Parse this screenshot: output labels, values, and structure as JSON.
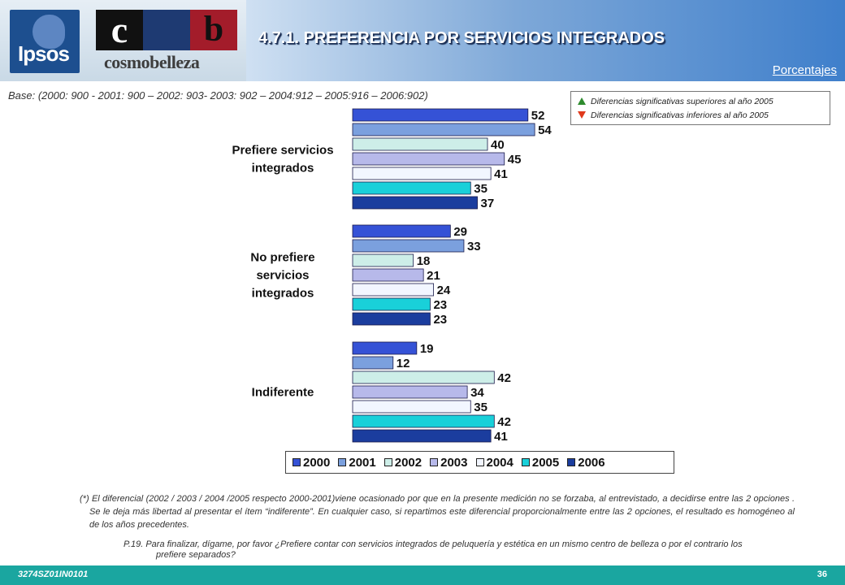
{
  "header": {
    "title": "4.7.1.  PREFERENCIA POR SERVICIOS INTEGRADOS",
    "subtitle": "Porcentajes",
    "logo_ipsos": "Ipsos",
    "logo_cb_c": "c",
    "logo_cb_b": "b",
    "logo_cosmo": "cosmobelleza"
  },
  "base_text": "Base: (2000: 900 - 2001: 900 – 2002: 903- 2003: 902 – 2004:912 – 2005:916 – 2006:902)",
  "significance": {
    "up": "Diferencias significativas superiores al año 2005",
    "down": "Diferencias significativas inferiores al año 2005",
    "up_color": "#2e8b2e",
    "down_color": "#e03a1c"
  },
  "chart_data": {
    "type": "bar",
    "orientation": "horizontal",
    "categories": [
      [
        "Prefiere servicios",
        "integrados"
      ],
      [
        "No prefiere",
        "servicios",
        "integrados"
      ],
      [
        "Indiferente"
      ]
    ],
    "series": [
      {
        "name": "2000",
        "color": "#3552d6",
        "values": [
          52,
          29,
          19
        ]
      },
      {
        "name": "2001",
        "color": "#7ba0de",
        "values": [
          54,
          33,
          12
        ]
      },
      {
        "name": "2002",
        "color": "#cdeee8",
        "values": [
          40,
          18,
          42
        ]
      },
      {
        "name": "2003",
        "color": "#b7b9ea",
        "values": [
          45,
          21,
          34
        ]
      },
      {
        "name": "2004",
        "color": "#f2f6ff",
        "values": [
          41,
          24,
          35
        ]
      },
      {
        "name": "2005",
        "color": "#19d0d9",
        "values": [
          35,
          23,
          42
        ]
      },
      {
        "name": "2006",
        "color": "#1b3d9e",
        "values": [
          37,
          23,
          41
        ]
      }
    ],
    "xlim": [
      0,
      100
    ],
    "grid": false,
    "data_labels": true,
    "legend": "bottom"
  },
  "note": "(*) El diferencial  (2002 / 2003 / 2004 /2005 respecto 2000-2001)viene ocasionado por que en la presente medición no se forzaba, al entrevistado, a decidirse entre las 2 opciones . Se le deja más libertad al presentar el ítem “indiferente”. En cualquier caso, si repartimos este diferencial proporcionalmente entre las 2 opciones, el resultado es homogéneo  al de los años precedentes.",
  "question": "P.19. Para finalizar, dígame, por favor ¿Prefiere contar con servicios integrados de peluquería y estética en un mismo centro de belleza  o por el contrario los prefiere  separados?",
  "footer": {
    "code": "3274SZ01IN0101",
    "page": "36"
  }
}
